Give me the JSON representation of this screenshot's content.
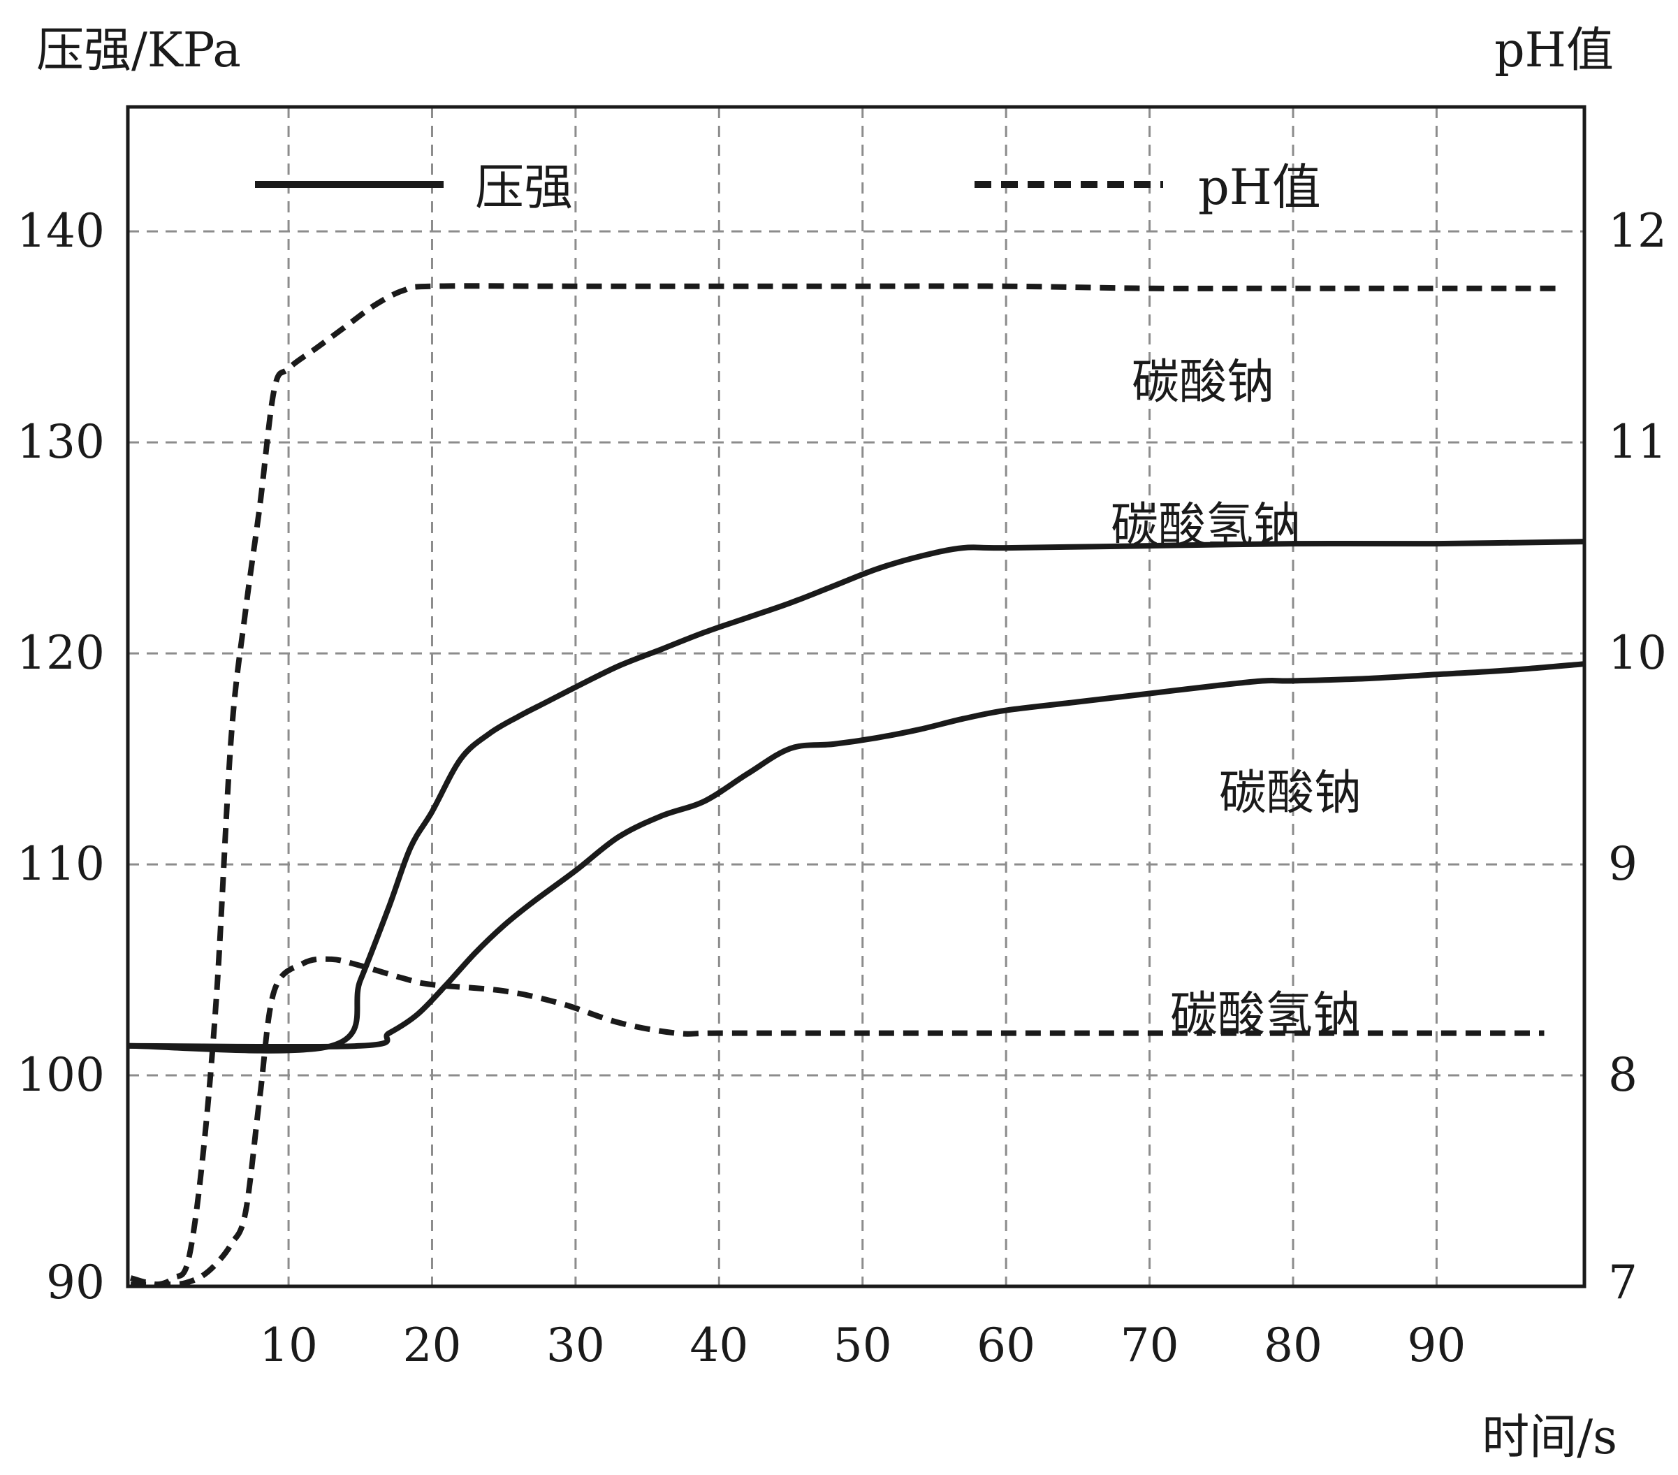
{
  "chart_data": {
    "type": "line",
    "y_left_label": "压强/KPa",
    "y_right_label": "pH值",
    "x_label": "时间/s",
    "x_ticks": [
      "10",
      "20",
      "30",
      "40",
      "50",
      "60",
      "70",
      "80",
      "90"
    ],
    "y_left_ticks": [
      "90",
      "100",
      "110",
      "120",
      "130",
      "140"
    ],
    "y_right_ticks": [
      "7",
      "8",
      "9",
      "10",
      "11",
      "12"
    ],
    "xlim": [
      -1.2,
      100.3
    ],
    "ylim_left": [
      90,
      145.9
    ],
    "ylim_right": [
      7,
      12.59
    ],
    "grid": true,
    "legend": [
      {
        "label": "压强",
        "style": "solid"
      },
      {
        "label": "pH值",
        "style": "dashed"
      }
    ],
    "series": [
      {
        "name": "碳酸氢钠",
        "axis": "left",
        "style": "solid",
        "label_text": "碳酸氢钠",
        "x": [
          -1.2,
          13,
          15,
          17,
          18.5,
          20,
          22,
          24,
          26,
          28,
          30,
          33,
          36,
          39,
          42,
          45,
          48,
          51,
          54,
          57,
          60,
          70,
          80,
          90,
          100.3
        ],
        "y": [
          101.4,
          101.4,
          104.5,
          108,
          110.8,
          112.5,
          115,
          116.2,
          117,
          117.7,
          118.4,
          119.4,
          120.2,
          121,
          121.7,
          122.4,
          123.2,
          124,
          124.6,
          125,
          125,
          125.1,
          125.2,
          125.2,
          125.3
        ]
      },
      {
        "name": "碳酸钠",
        "axis": "left",
        "style": "solid",
        "label_text": "碳酸钠",
        "x": [
          -1.2,
          15,
          17,
          19,
          21,
          23,
          25,
          27,
          30,
          33,
          36,
          39,
          42,
          45,
          48,
          51,
          54,
          57,
          60,
          65,
          70,
          75,
          78,
          80,
          85,
          90,
          95,
          100.3
        ],
        "y": [
          101.4,
          101.4,
          102,
          102.9,
          104.3,
          105.8,
          107.1,
          108.2,
          109.7,
          111.3,
          112.3,
          113,
          114.3,
          115.5,
          115.7,
          116,
          116.4,
          116.9,
          117.3,
          117.7,
          118.1,
          118.5,
          118.7,
          118.7,
          118.8,
          119,
          119.2,
          119.5
        ]
      },
      {
        "name": "碳酸钠",
        "axis": "right",
        "style": "dashed",
        "label_text": "碳酸钠",
        "x": [
          -1,
          0,
          1,
          2,
          3,
          4,
          5,
          6,
          7,
          8,
          9,
          10,
          12,
          14,
          16,
          18,
          20,
          30,
          40,
          50,
          60,
          70,
          80,
          90,
          98.5
        ],
        "y": [
          7.04,
          7.02,
          7.01,
          7.04,
          7.12,
          7.6,
          8.4,
          9.6,
          10.2,
          10.7,
          11.25,
          11.35,
          11.45,
          11.55,
          11.65,
          11.72,
          11.74,
          11.74,
          11.74,
          11.74,
          11.74,
          11.73,
          11.73,
          11.73,
          11.73
        ]
      },
      {
        "name": "碳酸氢钠",
        "axis": "right",
        "style": "dashed",
        "label_text": "碳酸氢钠",
        "x": [
          -1,
          2,
          3,
          4,
          5,
          6,
          7,
          8,
          9,
          11,
          13,
          15,
          18,
          20,
          25,
          29,
          33,
          37,
          40,
          50,
          60,
          70,
          80,
          90,
          97.5
        ],
        "y": [
          7.01,
          7.01,
          7.02,
          7.05,
          7.11,
          7.2,
          7.35,
          7.9,
          8.4,
          8.53,
          8.55,
          8.52,
          8.46,
          8.43,
          8.4,
          8.34,
          8.25,
          8.2,
          8.2,
          8.2,
          8.2,
          8.2,
          8.2,
          8.2,
          8.2
        ]
      }
    ]
  }
}
